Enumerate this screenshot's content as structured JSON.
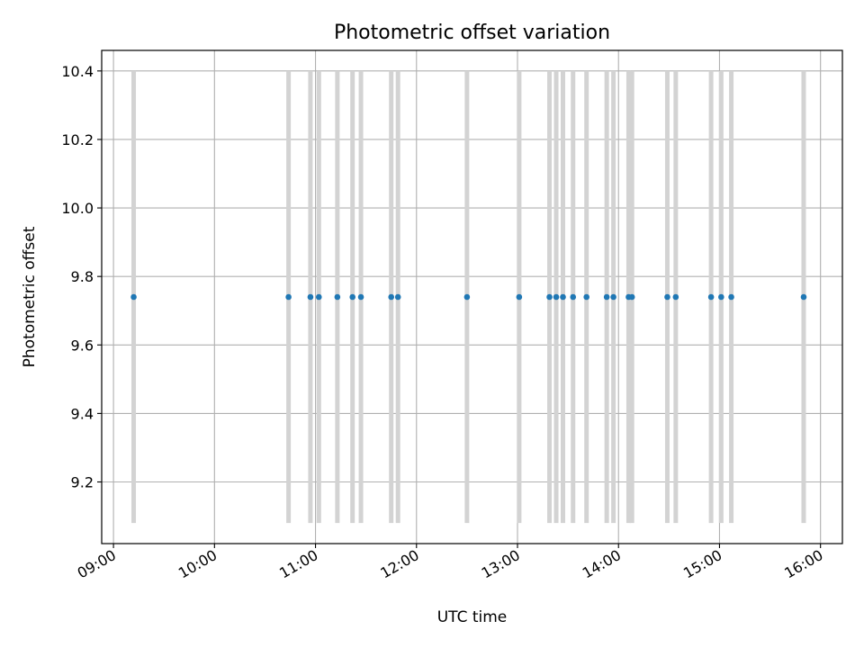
{
  "chart_data": {
    "type": "scatter",
    "title": "Photometric offset variation",
    "xlabel": "UTC time",
    "ylabel": "Photometric offset",
    "grid": true,
    "xlim": [
      "08:53",
      "16:13"
    ],
    "ylim": [
      9.02,
      10.46
    ],
    "xticks": [
      "09:00",
      "10:00",
      "11:00",
      "12:00",
      "13:00",
      "14:00",
      "15:00",
      "16:00"
    ],
    "yticks": [
      9.2,
      9.4,
      9.6,
      9.8,
      10.0,
      10.2,
      10.4
    ],
    "points": [
      {
        "x": "09:12",
        "y": 9.74,
        "yerr": [
          9.08,
          10.4
        ]
      },
      {
        "x": "10:44",
        "y": 9.74,
        "yerr": [
          9.08,
          10.4
        ]
      },
      {
        "x": "10:57",
        "y": 9.74,
        "yerr": [
          9.08,
          10.4
        ]
      },
      {
        "x": "11:02",
        "y": 9.74,
        "yerr": [
          9.08,
          10.4
        ]
      },
      {
        "x": "11:13",
        "y": 9.74,
        "yerr": [
          9.08,
          10.4
        ]
      },
      {
        "x": "11:22",
        "y": 9.74,
        "yerr": [
          9.08,
          10.4
        ]
      },
      {
        "x": "11:27",
        "y": 9.74,
        "yerr": [
          9.08,
          10.4
        ]
      },
      {
        "x": "11:45",
        "y": 9.74,
        "yerr": [
          9.08,
          10.4
        ]
      },
      {
        "x": "11:49",
        "y": 9.74,
        "yerr": [
          9.08,
          10.4
        ]
      },
      {
        "x": "12:30",
        "y": 9.74,
        "yerr": [
          9.08,
          10.4
        ]
      },
      {
        "x": "13:01",
        "y": 9.74,
        "yerr": [
          9.08,
          10.4
        ]
      },
      {
        "x": "13:19",
        "y": 9.74,
        "yerr": [
          9.08,
          10.4
        ]
      },
      {
        "x": "13:23",
        "y": 9.74,
        "yerr": [
          9.08,
          10.4
        ]
      },
      {
        "x": "13:27",
        "y": 9.74,
        "yerr": [
          9.08,
          10.4
        ]
      },
      {
        "x": "13:33",
        "y": 9.74,
        "yerr": [
          9.08,
          10.4
        ]
      },
      {
        "x": "13:41",
        "y": 9.74,
        "yerr": [
          9.08,
          10.4
        ]
      },
      {
        "x": "13:53",
        "y": 9.74,
        "yerr": [
          9.08,
          10.4
        ]
      },
      {
        "x": "13:57",
        "y": 9.74,
        "yerr": [
          9.08,
          10.4
        ]
      },
      {
        "x": "14:06",
        "y": 9.74,
        "yerr": [
          9.08,
          10.4
        ]
      },
      {
        "x": "14:08",
        "y": 9.74,
        "yerr": [
          9.08,
          10.4
        ]
      },
      {
        "x": "14:29",
        "y": 9.74,
        "yerr": [
          9.08,
          10.4
        ]
      },
      {
        "x": "14:34",
        "y": 9.74,
        "yerr": [
          9.08,
          10.4
        ]
      },
      {
        "x": "14:55",
        "y": 9.74,
        "yerr": [
          9.08,
          10.4
        ]
      },
      {
        "x": "15:01",
        "y": 9.74,
        "yerr": [
          9.08,
          10.4
        ]
      },
      {
        "x": "15:07",
        "y": 9.74,
        "yerr": [
          9.08,
          10.4
        ]
      },
      {
        "x": "15:50",
        "y": 9.74,
        "yerr": [
          9.08,
          10.4
        ]
      }
    ],
    "colors": {
      "marker": "#1f77b4",
      "errorbar": "#d3d3d3",
      "grid": "#b0b0b0",
      "axes": "#000000"
    }
  }
}
